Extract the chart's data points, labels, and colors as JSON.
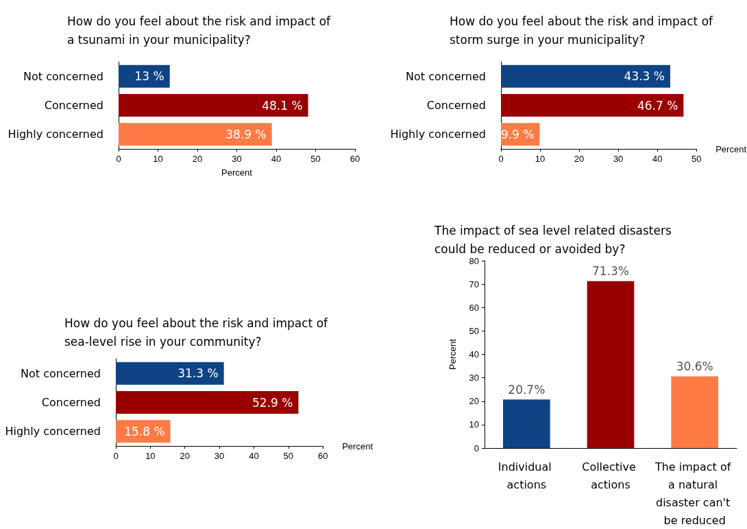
{
  "chart_data": [
    {
      "type": "bar",
      "orientation": "horizontal",
      "title": "How do you feel about the risk and impact of\na tsunami in your municipality?",
      "categories": [
        "Not concerned",
        "Concerned",
        "Highly concerned"
      ],
      "values": [
        13,
        48.1,
        38.9
      ],
      "colors": [
        "#0e4384",
        "#9a0000",
        "#ff7b45"
      ],
      "value_labels": [
        "13 %",
        "48.1 %",
        "38.9 %"
      ],
      "xlabel": "Percent",
      "xlim": [
        0,
        60
      ],
      "xticks": [
        0,
        10,
        20,
        30,
        40,
        50,
        60
      ],
      "grid": false
    },
    {
      "type": "bar",
      "orientation": "horizontal",
      "title": "How do you feel about the risk and impact of\nstorm surge in your municipality?",
      "categories": [
        "Not concerned",
        "Concerned",
        "Highly concerned"
      ],
      "values": [
        43.3,
        46.7,
        9.9
      ],
      "colors": [
        "#0e4384",
        "#9a0000",
        "#ff7b45"
      ],
      "value_labels": [
        "43.3 %",
        "46.7 %",
        "9.9 %"
      ],
      "xlabel": "Percent",
      "xlim": [
        0,
        50
      ],
      "xticks": [
        0,
        10,
        20,
        30,
        40,
        50
      ],
      "grid": false
    },
    {
      "type": "bar",
      "orientation": "horizontal",
      "title": "How do you feel about the risk and impact of\nsea-level rise in your community?",
      "categories": [
        "Not concerned",
        "Concerned",
        "Highly concerned"
      ],
      "values": [
        31.3,
        52.9,
        15.8
      ],
      "colors": [
        "#0e4384",
        "#9a0000",
        "#ff7b45"
      ],
      "value_labels": [
        "31.3 %",
        "52.9 %",
        "15.8 %"
      ],
      "xlabel": "Percent",
      "xlim": [
        0,
        60
      ],
      "xticks": [
        0,
        10,
        20,
        30,
        40,
        50,
        60
      ],
      "grid": false
    },
    {
      "type": "bar",
      "title": "The impact of sea level related disasters\ncould be reduced or avoided by?",
      "categories": [
        "Individual actions",
        "Collective actions",
        "The impact of a natural disaster can't be reduced"
      ],
      "values": [
        20.7,
        71.3,
        30.6
      ],
      "colors": [
        "#0e4384",
        "#9a0000",
        "#ff7b45"
      ],
      "value_labels": [
        "20.7%",
        "71.3%",
        "30.6%"
      ],
      "ylabel": "Percent",
      "ylim": [
        0,
        80
      ],
      "yticks": [
        0,
        10,
        20,
        30,
        40,
        50,
        60,
        70,
        80
      ],
      "grid": false
    }
  ]
}
